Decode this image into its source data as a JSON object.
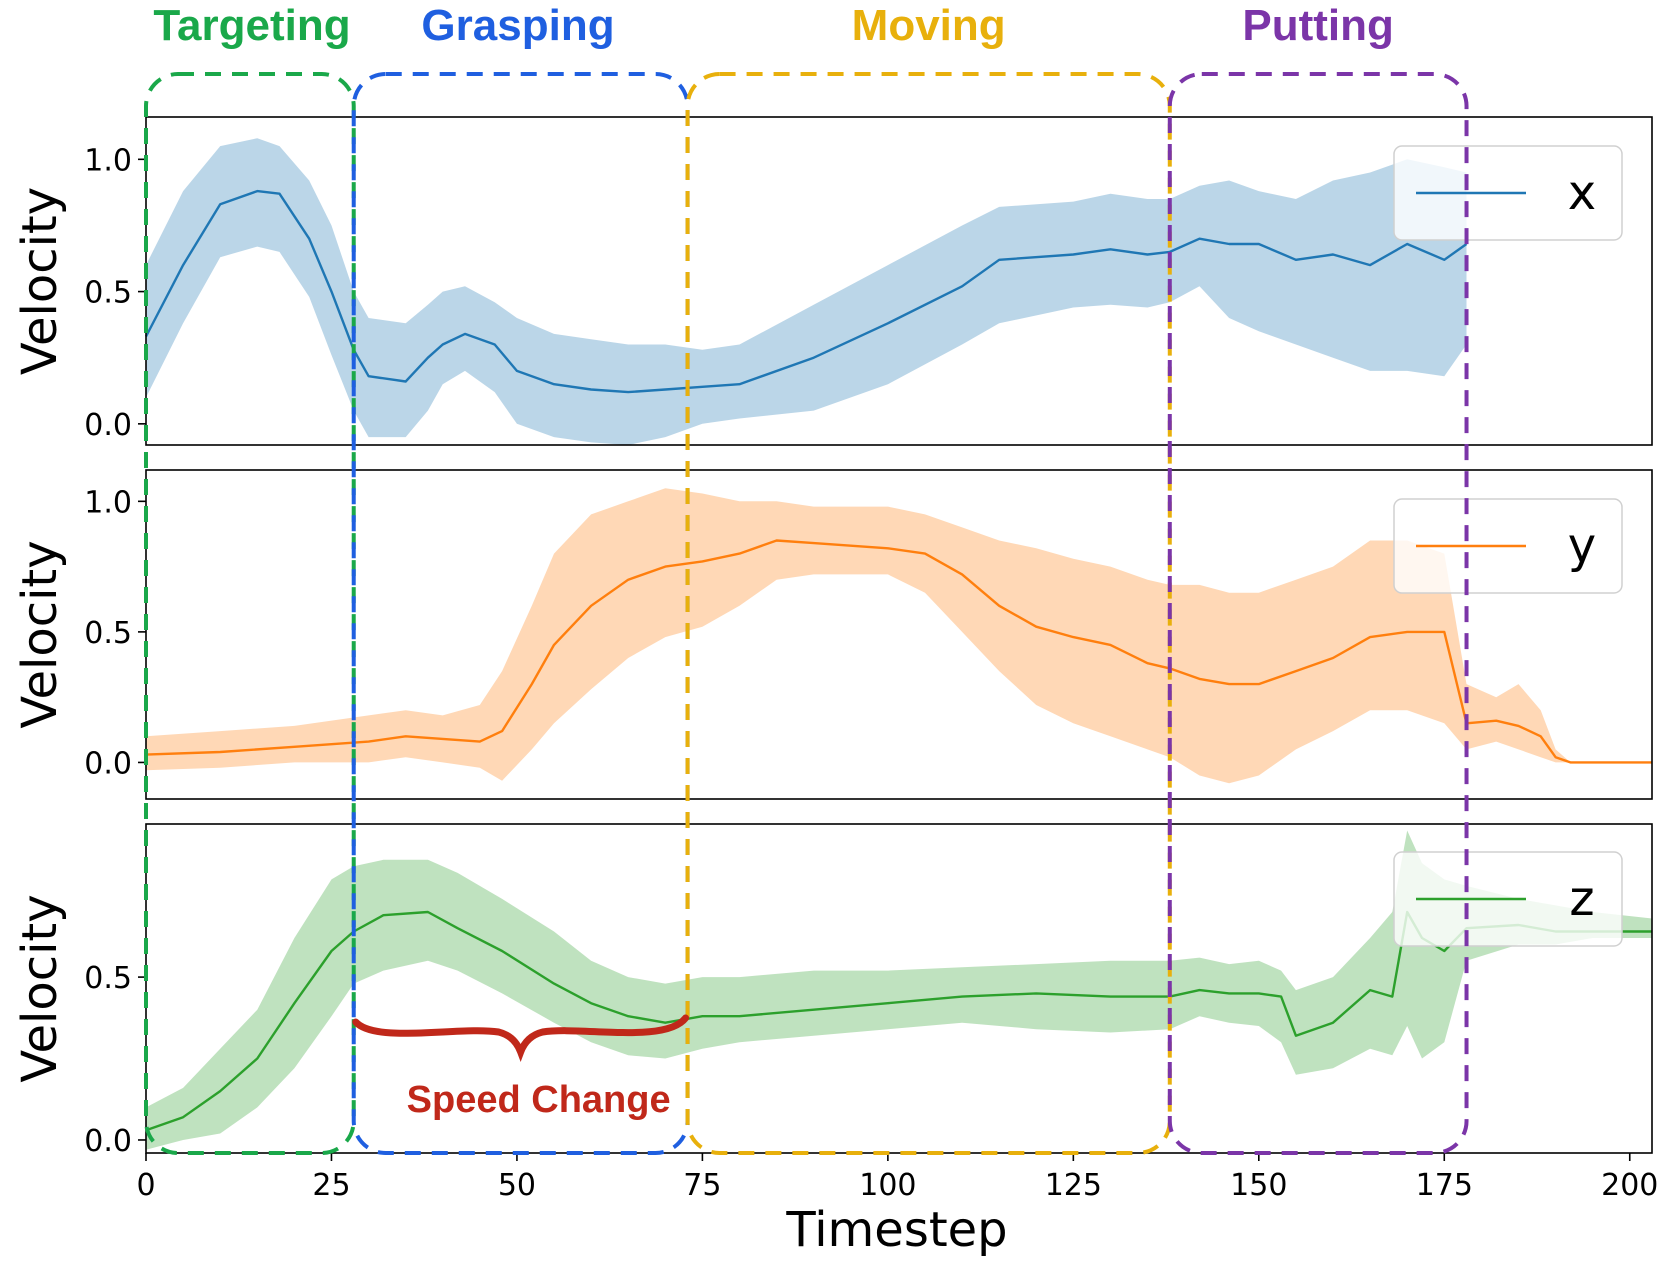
{
  "chart_data": {
    "type": "line",
    "xlabel": "Timestep",
    "xlim": [
      0,
      203
    ],
    "xticks": [
      0,
      25,
      50,
      75,
      100,
      125,
      150,
      175,
      200
    ],
    "phases": [
      {
        "name": "Targeting",
        "color": "#1aa84a",
        "start": 0,
        "end": 28
      },
      {
        "name": "Grasping",
        "color": "#1f5fe0",
        "start": 28,
        "end": 73
      },
      {
        "name": "Moving",
        "color": "#e8b00c",
        "start": 73,
        "end": 138
      },
      {
        "name": "Putting",
        "color": "#7b35a8",
        "start": 138,
        "end": 178
      }
    ],
    "annotation": {
      "text": "Speed Change",
      "color": "#c0281a",
      "x_start": 28,
      "x_end": 73
    },
    "panels": [
      {
        "ylabel": "Velocity",
        "ylim": [
          -0.08,
          1.16
        ],
        "yticks": [
          0.0,
          0.5,
          1.0
        ],
        "ytick_labels": [
          "0.0",
          "0.5",
          "1.0"
        ],
        "series": {
          "name": "x",
          "color": "#1f77b4",
          "x": [
            0,
            5,
            10,
            15,
            18,
            22,
            25,
            28,
            30,
            35,
            38,
            40,
            43,
            47,
            50,
            55,
            60,
            65,
            70,
            75,
            80,
            90,
            100,
            110,
            115,
            125,
            130,
            135,
            138,
            142,
            146,
            150,
            155,
            160,
            165,
            170,
            175,
            178
          ],
          "mean": [
            0.33,
            0.6,
            0.83,
            0.88,
            0.87,
            0.7,
            0.5,
            0.28,
            0.18,
            0.16,
            0.25,
            0.3,
            0.34,
            0.3,
            0.2,
            0.15,
            0.13,
            0.12,
            0.13,
            0.14,
            0.15,
            0.25,
            0.38,
            0.52,
            0.62,
            0.64,
            0.66,
            0.64,
            0.65,
            0.7,
            0.68,
            0.68,
            0.62,
            0.64,
            0.6,
            0.68,
            0.62,
            0.68
          ],
          "lower": [
            0.1,
            0.38,
            0.63,
            0.67,
            0.65,
            0.48,
            0.26,
            0.05,
            -0.05,
            -0.05,
            0.05,
            0.15,
            0.2,
            0.12,
            0.0,
            -0.05,
            -0.07,
            -0.08,
            -0.05,
            0.0,
            0.02,
            0.05,
            0.15,
            0.3,
            0.38,
            0.44,
            0.45,
            0.44,
            0.46,
            0.52,
            0.4,
            0.35,
            0.3,
            0.25,
            0.2,
            0.2,
            0.18,
            0.3
          ],
          "upper": [
            0.6,
            0.88,
            1.05,
            1.08,
            1.05,
            0.92,
            0.75,
            0.5,
            0.4,
            0.38,
            0.45,
            0.5,
            0.52,
            0.46,
            0.4,
            0.34,
            0.32,
            0.3,
            0.3,
            0.28,
            0.3,
            0.45,
            0.6,
            0.75,
            0.82,
            0.84,
            0.87,
            0.85,
            0.85,
            0.9,
            0.92,
            0.88,
            0.85,
            0.92,
            0.95,
            1.0,
            0.97,
            0.95
          ]
        }
      },
      {
        "ylabel": "Velocity",
        "ylim": [
          -0.14,
          1.12
        ],
        "yticks": [
          0.0,
          0.5,
          1.0
        ],
        "ytick_labels": [
          "0.0",
          "0.5",
          "1.0"
        ],
        "series": {
          "name": "y",
          "color": "#ff7f0e",
          "x": [
            0,
            10,
            20,
            30,
            35,
            40,
            45,
            48,
            52,
            55,
            60,
            65,
            70,
            75,
            80,
            85,
            90,
            95,
            100,
            105,
            110,
            115,
            120,
            125,
            130,
            135,
            138,
            142,
            146,
            150,
            155,
            160,
            165,
            170,
            175,
            178,
            182,
            185,
            188,
            190,
            192,
            203
          ],
          "mean": [
            0.03,
            0.04,
            0.06,
            0.08,
            0.1,
            0.09,
            0.08,
            0.12,
            0.3,
            0.45,
            0.6,
            0.7,
            0.75,
            0.77,
            0.8,
            0.85,
            0.84,
            0.83,
            0.82,
            0.8,
            0.72,
            0.6,
            0.52,
            0.48,
            0.45,
            0.38,
            0.36,
            0.32,
            0.3,
            0.3,
            0.35,
            0.4,
            0.48,
            0.5,
            0.5,
            0.15,
            0.16,
            0.14,
            0.1,
            0.02,
            0.0,
            0.0
          ],
          "lower": [
            -0.03,
            -0.02,
            0.0,
            0.0,
            0.02,
            0.0,
            -0.02,
            -0.07,
            0.05,
            0.15,
            0.28,
            0.4,
            0.48,
            0.52,
            0.6,
            0.7,
            0.72,
            0.72,
            0.72,
            0.65,
            0.5,
            0.35,
            0.22,
            0.15,
            0.1,
            0.05,
            0.02,
            -0.05,
            -0.08,
            -0.05,
            0.05,
            0.12,
            0.2,
            0.2,
            0.15,
            0.05,
            0.08,
            0.05,
            0.02,
            0.0,
            0.0,
            0.0
          ],
          "upper": [
            0.1,
            0.12,
            0.14,
            0.18,
            0.2,
            0.18,
            0.22,
            0.35,
            0.6,
            0.8,
            0.95,
            1.0,
            1.05,
            1.03,
            1.0,
            1.0,
            0.98,
            0.98,
            0.98,
            0.95,
            0.9,
            0.85,
            0.82,
            0.78,
            0.75,
            0.7,
            0.68,
            0.68,
            0.65,
            0.65,
            0.7,
            0.75,
            0.85,
            0.85,
            0.8,
            0.3,
            0.25,
            0.3,
            0.2,
            0.05,
            0.0,
            0.0
          ]
        }
      },
      {
        "ylabel": "Velocity",
        "ylim": [
          -0.04,
          0.97
        ],
        "yticks": [
          0.0,
          0.5
        ],
        "ytick_labels": [
          "0.0",
          "0.5"
        ],
        "series": {
          "name": "z",
          "color": "#2ca02c",
          "x": [
            0,
            5,
            10,
            15,
            20,
            25,
            28,
            32,
            38,
            42,
            48,
            55,
            60,
            65,
            70,
            75,
            80,
            90,
            100,
            110,
            120,
            130,
            138,
            142,
            146,
            150,
            153,
            155,
            160,
            165,
            168,
            170,
            172,
            175,
            178,
            185,
            190,
            195,
            203
          ],
          "mean": [
            0.03,
            0.07,
            0.15,
            0.25,
            0.42,
            0.58,
            0.64,
            0.69,
            0.7,
            0.65,
            0.58,
            0.48,
            0.42,
            0.38,
            0.36,
            0.38,
            0.38,
            0.4,
            0.42,
            0.44,
            0.45,
            0.44,
            0.44,
            0.46,
            0.45,
            0.45,
            0.44,
            0.32,
            0.36,
            0.46,
            0.44,
            0.7,
            0.62,
            0.58,
            0.65,
            0.66,
            0.64,
            0.64,
            0.64
          ],
          "lower": [
            -0.03,
            0.0,
            0.02,
            0.1,
            0.22,
            0.38,
            0.48,
            0.52,
            0.55,
            0.52,
            0.45,
            0.36,
            0.3,
            0.26,
            0.25,
            0.28,
            0.3,
            0.32,
            0.34,
            0.36,
            0.34,
            0.33,
            0.34,
            0.38,
            0.36,
            0.35,
            0.3,
            0.2,
            0.22,
            0.28,
            0.26,
            0.35,
            0.25,
            0.3,
            0.55,
            0.6,
            0.6,
            0.62,
            0.62
          ],
          "upper": [
            0.1,
            0.16,
            0.28,
            0.4,
            0.62,
            0.8,
            0.84,
            0.86,
            0.86,
            0.82,
            0.74,
            0.64,
            0.55,
            0.5,
            0.48,
            0.5,
            0.5,
            0.52,
            0.52,
            0.53,
            0.54,
            0.55,
            0.55,
            0.56,
            0.54,
            0.55,
            0.52,
            0.46,
            0.5,
            0.62,
            0.7,
            0.95,
            0.85,
            0.8,
            0.78,
            0.74,
            0.72,
            0.7,
            0.68
          ]
        }
      }
    ]
  }
}
